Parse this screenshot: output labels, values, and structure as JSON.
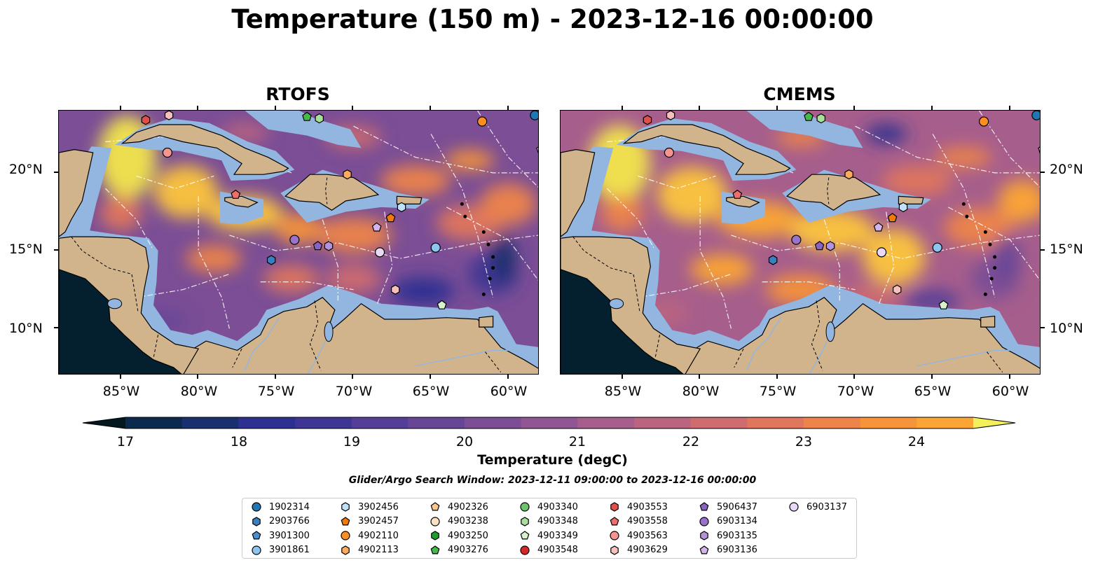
{
  "title": "Temperature (150 m) - 2023-12-16 00:00:00",
  "panels": [
    {
      "title": "RTOFS",
      "variant": "rtofs"
    },
    {
      "title": "CMEMS",
      "variant": "cmems"
    }
  ],
  "map_extent": {
    "lon_min": -89,
    "lon_max": -58,
    "lat_min": 7,
    "lat_max": 24
  },
  "lat_ticks": [
    {
      "value": 20,
      "label": "20°N"
    },
    {
      "value": 15,
      "label": "15°N"
    },
    {
      "value": 10,
      "label": "10°N"
    }
  ],
  "lon_ticks": [
    {
      "value": -85,
      "label": "85°W"
    },
    {
      "value": -80,
      "label": "80°W"
    },
    {
      "value": -75,
      "label": "75°W"
    },
    {
      "value": -70,
      "label": "70°W"
    },
    {
      "value": -65,
      "label": "65°W"
    },
    {
      "value": -60,
      "label": "60°W"
    }
  ],
  "colorbar": {
    "label": "Temperature (degC)",
    "min": 17,
    "max": 24.5,
    "step": 0.5,
    "extend": "both",
    "ticks": [
      17,
      18,
      19,
      20,
      21,
      22,
      23,
      24
    ],
    "colors": [
      "#04202f",
      "#0c2a4e",
      "#1a2f6e",
      "#2d3090",
      "#3f3594",
      "#553e97",
      "#684697",
      "#7b4e96",
      "#905693",
      "#a65e8c",
      "#bb6480",
      "#cf6c6f",
      "#e0765c",
      "#ee8449",
      "#f79338",
      "#fca534",
      "#fcc53c",
      "#f2e64b"
    ],
    "under_color": "#031821",
    "over_color": "#f3f05a"
  },
  "search_window": "Glider/Argo Search Window: 2023-12-11 09:00:00 to 2023-12-16 00:00:00",
  "legend": [
    {
      "id": "1902314",
      "marker": "circle",
      "color": "#1f77b4"
    },
    {
      "id": "2903766",
      "marker": "hexagon",
      "color": "#3a7fbf"
    },
    {
      "id": "3901300",
      "marker": "pentagon",
      "color": "#4a90d0"
    },
    {
      "id": "3901861",
      "marker": "circle",
      "color": "#8ec5ee"
    },
    {
      "id": "3902456",
      "marker": "hexagon",
      "color": "#bfe2fb"
    },
    {
      "id": "3902457",
      "marker": "pentagon",
      "color": "#f07a0a"
    },
    {
      "id": "4902110",
      "marker": "circle",
      "color": "#fd8e22"
    },
    {
      "id": "4902113",
      "marker": "hexagon",
      "color": "#fdac5e"
    },
    {
      "id": "4902326",
      "marker": "pentagon",
      "color": "#fdc78c"
    },
    {
      "id": "4903238",
      "marker": "circle",
      "color": "#fde0c0"
    },
    {
      "id": "4903250",
      "marker": "hexagon",
      "color": "#1f9e2f"
    },
    {
      "id": "4903276",
      "marker": "pentagon",
      "color": "#45b94a"
    },
    {
      "id": "4903340",
      "marker": "circle",
      "color": "#6cc36a"
    },
    {
      "id": "4903348",
      "marker": "hexagon",
      "color": "#a6e09a"
    },
    {
      "id": "4903349",
      "marker": "pentagon",
      "color": "#d7f3cd"
    },
    {
      "id": "4903548",
      "marker": "circle",
      "color": "#d62728"
    },
    {
      "id": "4903553",
      "marker": "hexagon",
      "color": "#e0504a"
    },
    {
      "id": "4903558",
      "marker": "pentagon",
      "color": "#ee6e6c"
    },
    {
      "id": "4903563",
      "marker": "circle",
      "color": "#f69491"
    },
    {
      "id": "4903629",
      "marker": "hexagon",
      "color": "#f8c0bd"
    },
    {
      "id": "5906437",
      "marker": "pentagon",
      "color": "#8a62c2"
    },
    {
      "id": "6903134",
      "marker": "circle",
      "color": "#9a72cc"
    },
    {
      "id": "6903135",
      "marker": "hexagon",
      "color": "#b592dc"
    },
    {
      "id": "6903136",
      "marker": "pentagon",
      "color": "#d3b5ec"
    },
    {
      "id": "6903137",
      "marker": "circle",
      "color": "#ead8f7"
    }
  ],
  "float_positions": [
    {
      "id": "4903553",
      "lon": -83.4,
      "lat": 23.4
    },
    {
      "id": "4903629",
      "lon": -81.9,
      "lat": 23.7
    },
    {
      "id": "4903276",
      "lon": -73.0,
      "lat": 23.6
    },
    {
      "id": "4903348",
      "lon": -72.2,
      "lat": 23.5
    },
    {
      "id": "4902110",
      "lon": -61.7,
      "lat": 23.3
    },
    {
      "id": "1902314",
      "lon": -58.3,
      "lat": 23.7
    },
    {
      "id": "4903563",
      "lon": -82.0,
      "lat": 21.3
    },
    {
      "id": "4902326",
      "lon": -57.9,
      "lat": 21.5
    },
    {
      "id": "4902113",
      "lon": -70.4,
      "lat": 19.9
    },
    {
      "id": "4903558",
      "lon": -77.6,
      "lat": 18.6
    },
    {
      "id": "3902456",
      "lon": -66.9,
      "lat": 17.8
    },
    {
      "id": "3902457",
      "lon": -67.6,
      "lat": 17.1
    },
    {
      "id": "6903136",
      "lon": -68.5,
      "lat": 16.5
    },
    {
      "id": "6903134",
      "lon": -73.8,
      "lat": 15.7
    },
    {
      "id": "5906437",
      "lon": -72.3,
      "lat": 15.3
    },
    {
      "id": "6903135",
      "lon": -71.6,
      "lat": 15.3
    },
    {
      "id": "3901861",
      "lon": -64.7,
      "lat": 15.2
    },
    {
      "id": "6903137",
      "lon": -68.3,
      "lat": 14.9
    },
    {
      "id": "2903766",
      "lon": -75.3,
      "lat": 14.4
    },
    {
      "id": "4903629",
      "lon": -67.3,
      "lat": 12.5
    },
    {
      "id": "4903349",
      "lon": -64.3,
      "lat": 11.5
    }
  ]
}
